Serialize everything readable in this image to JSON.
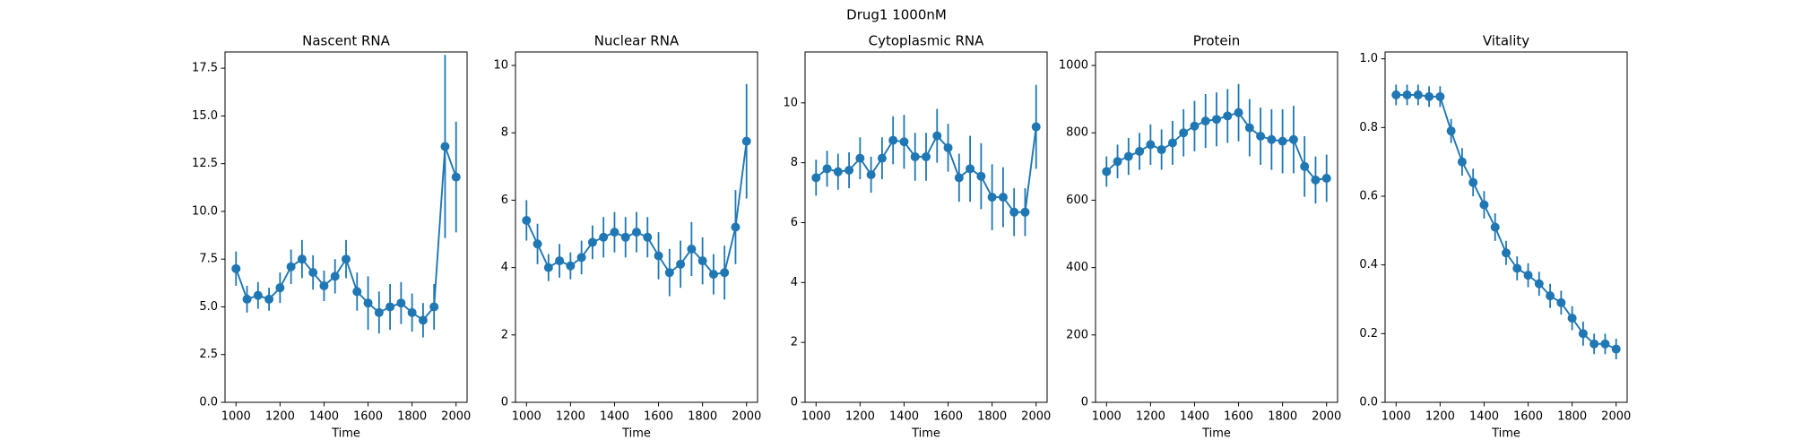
{
  "title": "Drug1 1000nM",
  "chart_data": [
    {
      "type": "line",
      "title": "Nascent RNA",
      "x_label": "Time",
      "x": [
        1000,
        1050,
        1100,
        1150,
        1200,
        1250,
        1300,
        1350,
        1400,
        1450,
        1500,
        1550,
        1600,
        1650,
        1700,
        1750,
        1800,
        1850,
        1900,
        1950,
        2000
      ],
      "series": [
        {
          "color": "#1f77b4",
          "values": [
            7.0,
            5.4,
            5.6,
            5.4,
            6.0,
            7.1,
            7.5,
            6.8,
            6.1,
            6.6,
            7.5,
            5.8,
            5.2,
            4.7,
            5.0,
            5.2,
            4.7,
            4.3,
            5.0,
            13.4,
            11.8
          ],
          "errors": [
            0.9,
            0.7,
            0.7,
            0.6,
            0.8,
            0.9,
            1.0,
            0.9,
            0.8,
            0.9,
            1.0,
            1.0,
            1.4,
            1.1,
            1.2,
            1.1,
            1.0,
            0.9,
            1.2,
            4.8,
            2.9
          ]
        }
      ],
      "xlim": [
        950,
        2050
      ],
      "xticks": [
        1000,
        1200,
        1400,
        1600,
        1800,
        2000
      ],
      "ylim": [
        0,
        18.35
      ],
      "yticks": [
        {
          "value": 0,
          "label": "0.0"
        },
        2.5,
        {
          "value": 5,
          "label": "5.0"
        },
        7.5,
        {
          "value": 10,
          "label": "10.0"
        },
        12.5,
        {
          "value": 15,
          "label": "15.0"
        },
        17.5
      ]
    },
    {
      "type": "line",
      "title": "Nuclear RNA",
      "x_label": "Time",
      "x": [
        1000,
        1050,
        1100,
        1150,
        1200,
        1250,
        1300,
        1350,
        1400,
        1450,
        1500,
        1550,
        1600,
        1650,
        1700,
        1750,
        1800,
        1850,
        1900,
        1950,
        2000
      ],
      "series": [
        {
          "color": "#1f77b4",
          "values": [
            5.4,
            4.7,
            4.0,
            4.2,
            4.05,
            4.3,
            4.75,
            4.9,
            5.05,
            4.9,
            5.05,
            4.9,
            4.35,
            3.85,
            4.1,
            4.55,
            4.2,
            3.8,
            3.85,
            5.2,
            7.75
          ],
          "errors": [
            0.6,
            0.6,
            0.4,
            0.5,
            0.4,
            0.5,
            0.5,
            0.6,
            0.6,
            0.6,
            0.6,
            0.6,
            0.7,
            0.7,
            0.7,
            0.8,
            0.7,
            0.6,
            0.8,
            1.1,
            1.7
          ]
        }
      ],
      "xlim": [
        950,
        2050
      ],
      "xticks": [
        1000,
        1200,
        1400,
        1600,
        1800,
        2000
      ],
      "ylim": [
        0,
        10.4
      ],
      "yticks": [
        0,
        2,
        4,
        6,
        8,
        10
      ]
    },
    {
      "type": "line",
      "title": "Cytoplasmic RNA",
      "x_label": "Time",
      "x": [
        1000,
        1050,
        1100,
        1150,
        1200,
        1250,
        1300,
        1350,
        1400,
        1450,
        1500,
        1550,
        1600,
        1650,
        1700,
        1750,
        1800,
        1850,
        1900,
        1950,
        2000
      ],
      "series": [
        {
          "color": "#1f77b4",
          "values": [
            7.5,
            7.8,
            7.7,
            7.75,
            8.15,
            7.6,
            8.15,
            8.75,
            8.7,
            8.2,
            8.2,
            8.9,
            8.5,
            7.5,
            7.8,
            7.55,
            6.85,
            6.85,
            6.35,
            6.35,
            9.2
          ],
          "errors": [
            0.6,
            0.6,
            0.6,
            0.6,
            0.7,
            0.6,
            0.7,
            0.8,
            0.9,
            0.8,
            0.8,
            0.9,
            0.8,
            0.8,
            1.1,
            1.1,
            1.1,
            1.0,
            0.8,
            0.8,
            1.4
          ]
        }
      ],
      "xlim": [
        950,
        2050
      ],
      "xticks": [
        1000,
        1200,
        1400,
        1600,
        1800,
        2000
      ],
      "ylim": [
        0,
        11.7
      ],
      "yticks": [
        0,
        2,
        4,
        6,
        8,
        10
      ]
    },
    {
      "type": "line",
      "title": "Protein",
      "x_label": "Time",
      "x": [
        1000,
        1050,
        1100,
        1150,
        1200,
        1250,
        1300,
        1350,
        1400,
        1450,
        1500,
        1550,
        1600,
        1650,
        1700,
        1750,
        1800,
        1850,
        1900,
        1950,
        2000
      ],
      "series": [
        {
          "color": "#1f77b4",
          "values": [
            685,
            715,
            730,
            745,
            765,
            750,
            770,
            800,
            820,
            835,
            840,
            850,
            860,
            815,
            790,
            780,
            775,
            780,
            700,
            660,
            665
          ],
          "errors": [
            45,
            50,
            55,
            55,
            60,
            60,
            65,
            70,
            75,
            80,
            80,
            80,
            85,
            85,
            85,
            90,
            95,
            100,
            90,
            70,
            70
          ]
        }
      ],
      "xlim": [
        950,
        2050
      ],
      "xticks": [
        1000,
        1200,
        1400,
        1600,
        1800,
        2000
      ],
      "ylim": [
        0,
        1040
      ],
      "yticks": [
        0,
        200,
        400,
        600,
        800,
        1000
      ]
    },
    {
      "type": "line",
      "title": "Vitality",
      "x_label": "Time",
      "x": [
        1000,
        1050,
        1100,
        1150,
        1200,
        1250,
        1300,
        1350,
        1400,
        1450,
        1500,
        1550,
        1600,
        1650,
        1700,
        1750,
        1800,
        1850,
        1900,
        1950,
        2000
      ],
      "series": [
        {
          "color": "#1f77b4",
          "values": [
            0.895,
            0.895,
            0.895,
            0.89,
            0.89,
            0.79,
            0.7,
            0.64,
            0.575,
            0.51,
            0.435,
            0.39,
            0.37,
            0.345,
            0.31,
            0.29,
            0.245,
            0.2,
            0.17,
            0.17,
            0.155
          ],
          "errors": [
            0.03,
            0.03,
            0.03,
            0.03,
            0.03,
            0.035,
            0.04,
            0.04,
            0.04,
            0.04,
            0.035,
            0.035,
            0.035,
            0.035,
            0.035,
            0.035,
            0.035,
            0.035,
            0.03,
            0.03,
            0.03
          ]
        }
      ],
      "xlim": [
        950,
        2050
      ],
      "xticks": [
        1000,
        1200,
        1400,
        1600,
        1800,
        2000
      ],
      "ylim": [
        0,
        1.02
      ],
      "yticks": [
        {
          "value": 0,
          "label": "0.0"
        },
        0.2,
        0.4,
        0.6,
        0.8,
        {
          "value": 1,
          "label": "1.0"
        }
      ]
    }
  ]
}
